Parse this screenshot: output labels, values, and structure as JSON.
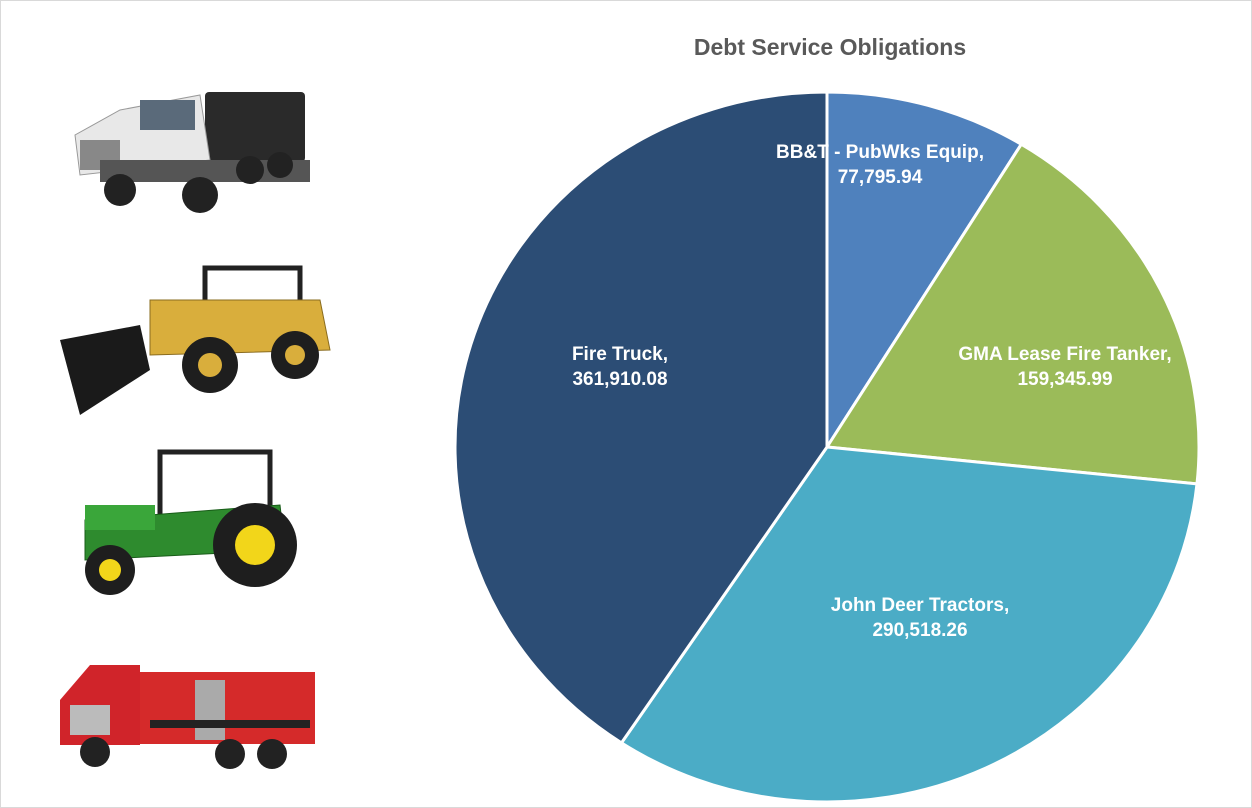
{
  "chart_data": {
    "type": "pie",
    "title": "Debt Service Obligations",
    "categories": [
      "BB&T - PubWks Equip",
      "GMA Lease Fire Tanker",
      "John Deer Tractors",
      "Fire Truck"
    ],
    "values": [
      77795.94,
      159345.99,
      290518.26,
      361910.08
    ],
    "value_labels": [
      "77,795.94",
      "159,345.99",
      "290,518.26",
      "361,910.08"
    ],
    "colors": [
      "#4f81bd",
      "#9bbb59",
      "#4bacc6",
      "#2c4d75"
    ]
  }
}
